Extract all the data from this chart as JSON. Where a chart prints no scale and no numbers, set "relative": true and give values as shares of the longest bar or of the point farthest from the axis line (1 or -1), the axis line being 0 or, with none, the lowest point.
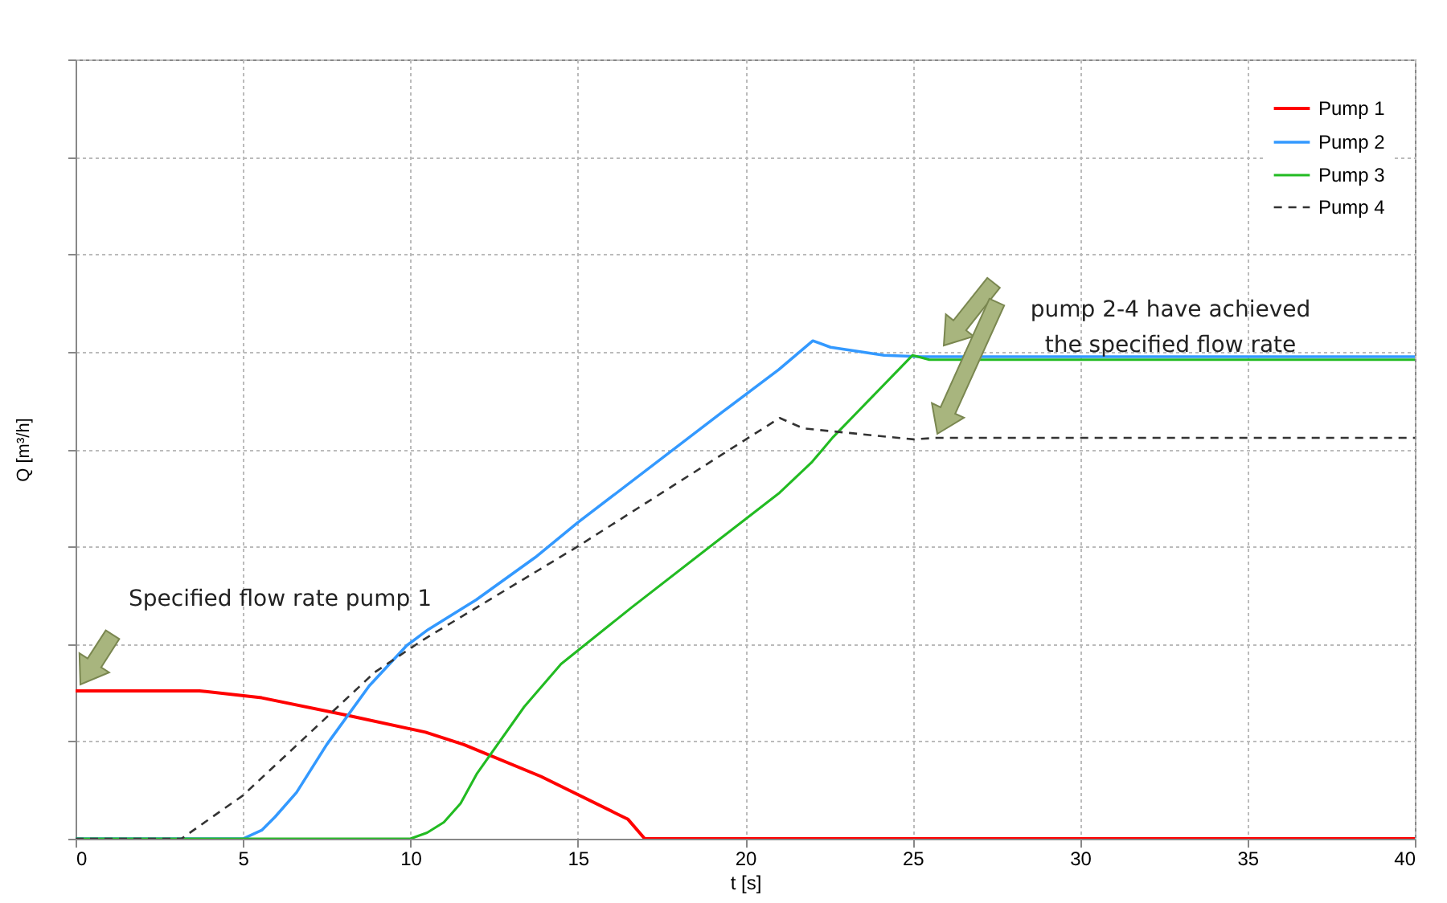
{
  "chart_data": {
    "type": "line",
    "xlabel": "t [s]",
    "ylabel": "Q [m³/h]",
    "relative": true,
    "xlim": [
      0,
      40
    ],
    "xticks": [
      0,
      5,
      10,
      15,
      20,
      25,
      30,
      35,
      40
    ],
    "grid": true,
    "legend": "top right",
    "annotations": [
      "Specified flow rate pump 1",
      "pump 2-4 have achieved the specified flow rate"
    ],
    "series": [
      {
        "name": "Pump 1",
        "color": "#ff0000",
        "x": [
          0,
          3.7,
          5.56,
          8.1,
          10.45,
          11.6,
          13.9,
          16.5,
          17.0,
          40
        ],
        "values": [
          0.297,
          0.297,
          0.283,
          0.248,
          0.214,
          0.189,
          0.125,
          0.039,
          0,
          0
        ]
      },
      {
        "name": "Pump 2",
        "color": "#3399ff",
        "x": [
          0,
          5.0,
          5.56,
          5.96,
          6.6,
          7.5,
          8.77,
          9.89,
          10.53,
          11.97,
          13.73,
          15.0,
          19.34,
          21.0,
          22.02,
          22.55,
          24.15,
          25.27,
          40
        ],
        "values": [
          0,
          0,
          0.017,
          0.044,
          0.093,
          0.189,
          0.307,
          0.388,
          0.42,
          0.48,
          0.565,
          0.635,
          0.858,
          0.942,
          1.0,
          0.987,
          0.971,
          0.968,
          0.968
        ]
      },
      {
        "name": "Pump 3",
        "color": "#22bb22",
        "x": [
          0,
          10.0,
          10.5,
          11.0,
          11.5,
          11.98,
          13.4,
          14.5,
          16.6,
          18.86,
          21.03,
          22.0,
          22.63,
          25.0,
          25.5,
          40
        ],
        "values": [
          0,
          0,
          0.012,
          0.033,
          0.071,
          0.13,
          0.265,
          0.351,
          0.464,
          0.582,
          0.695,
          0.757,
          0.807,
          0.971,
          0.962,
          0.962
        ]
      },
      {
        "name": "Pump 4",
        "color": "#333333",
        "line_style": "dashed",
        "x": [
          0,
          3.16,
          5.0,
          8.93,
          10.37,
          15.0,
          19.34,
          21.03,
          21.74,
          25.03,
          25.7,
          40
        ],
        "values": [
          0,
          0,
          0.087,
          0.334,
          0.399,
          0.587,
          0.773,
          0.845,
          0.824,
          0.802,
          0.805,
          0.805
        ]
      }
    ]
  }
}
